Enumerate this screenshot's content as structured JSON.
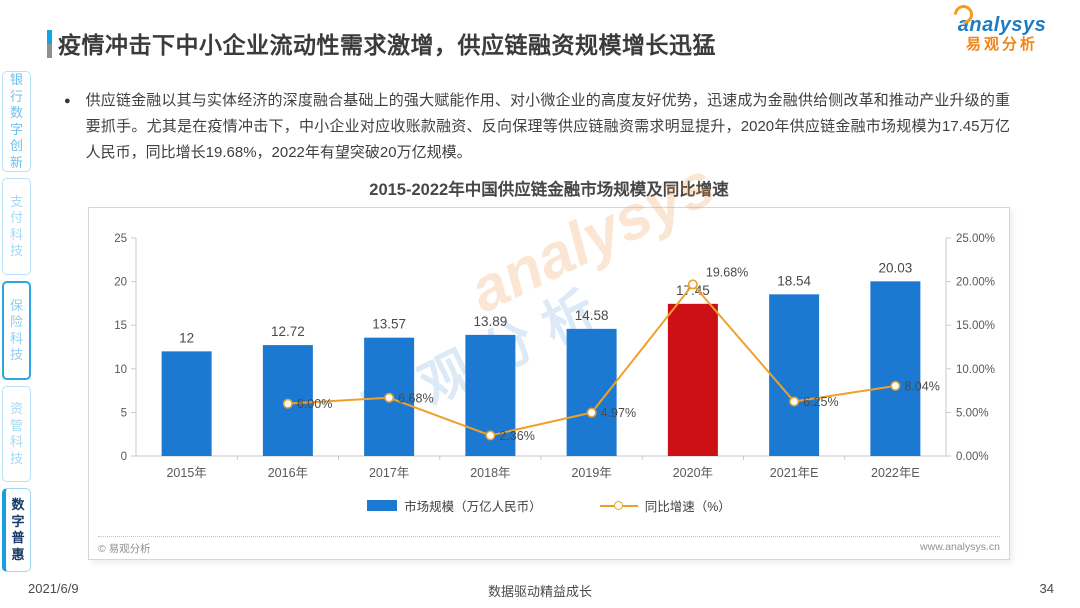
{
  "header": {
    "title": "疫情冲击下中小企业流动性需求激增，供应链融资规模增长迅猛",
    "logo": {
      "wordmark": "analysys",
      "cn": "易观分析"
    }
  },
  "sidebar": {
    "items": [
      {
        "label": "银行数字创新"
      },
      {
        "label": "支付科技"
      },
      {
        "label": "保险科技"
      },
      {
        "label": "资管科技"
      },
      {
        "label": "数字普惠"
      }
    ]
  },
  "main": {
    "paragraph": "供应链金融以其与实体经济的深度融合基础上的强大赋能作用、对小微企业的高度友好优势，迅速成为金融供给侧改革和推动产业升级的重要抓手。尤其是在疫情冲击下，中小企业对应收账款融资、反向保理等供应链融资需求明显提升，2020年供应链金融市场规模为17.45万亿人民币，同比增长19.68%，2022年有望突破20万亿规模。"
  },
  "chart_data": {
    "type": "bar+line",
    "title": "2015-2022年中国供应链金融市场规模及同比增速",
    "categories": [
      "2015年",
      "2016年",
      "2017年",
      "2018年",
      "2019年",
      "2020年",
      "2021年E",
      "2022年E"
    ],
    "series": [
      {
        "name": "市场规模（万亿人民币）",
        "type": "bar",
        "values": [
          12,
          12.72,
          13.57,
          13.89,
          14.58,
          17.45,
          18.54,
          20.03
        ],
        "labels": [
          "12",
          "12.72",
          "13.57",
          "13.89",
          "14.58",
          "17.45",
          "18.54",
          "20.03"
        ]
      },
      {
        "name": "同比增速（%）",
        "type": "line",
        "values": [
          null,
          6.0,
          6.68,
          2.36,
          4.97,
          19.68,
          6.25,
          8.04
        ],
        "labels": [
          "",
          "6.00%",
          "6.68%",
          "2.36%",
          "4.97%",
          "19.68%",
          "6.25%",
          "8.04%"
        ],
        "label_positions": [
          "",
          "right",
          "right",
          "right",
          "right",
          "above",
          "right",
          "right"
        ]
      }
    ],
    "left_axis": {
      "min": 0,
      "max": 25,
      "ticks": [
        "0",
        "5",
        "10",
        "15",
        "20",
        "25"
      ]
    },
    "right_axis": {
      "min": 0,
      "max": 25,
      "ticks": [
        "0.00%",
        "5.00%",
        "10.00%",
        "15.00%",
        "20.00%",
        "25.00%"
      ]
    },
    "colors": {
      "bar": "#1c79d2",
      "highlight": "#cc1016",
      "line": "#eea129"
    },
    "highlight_index": 5,
    "legend_position": "bottom",
    "grid": false
  },
  "watermark": {
    "line1": "analysys",
    "line2": "易观分析"
  },
  "card_footer": {
    "copyright": "© 易观分析",
    "website": "www.analysys.cn"
  },
  "page_footer": {
    "date": "2021/6/9",
    "slogan": "数据驱动精益成长",
    "page": "34"
  }
}
